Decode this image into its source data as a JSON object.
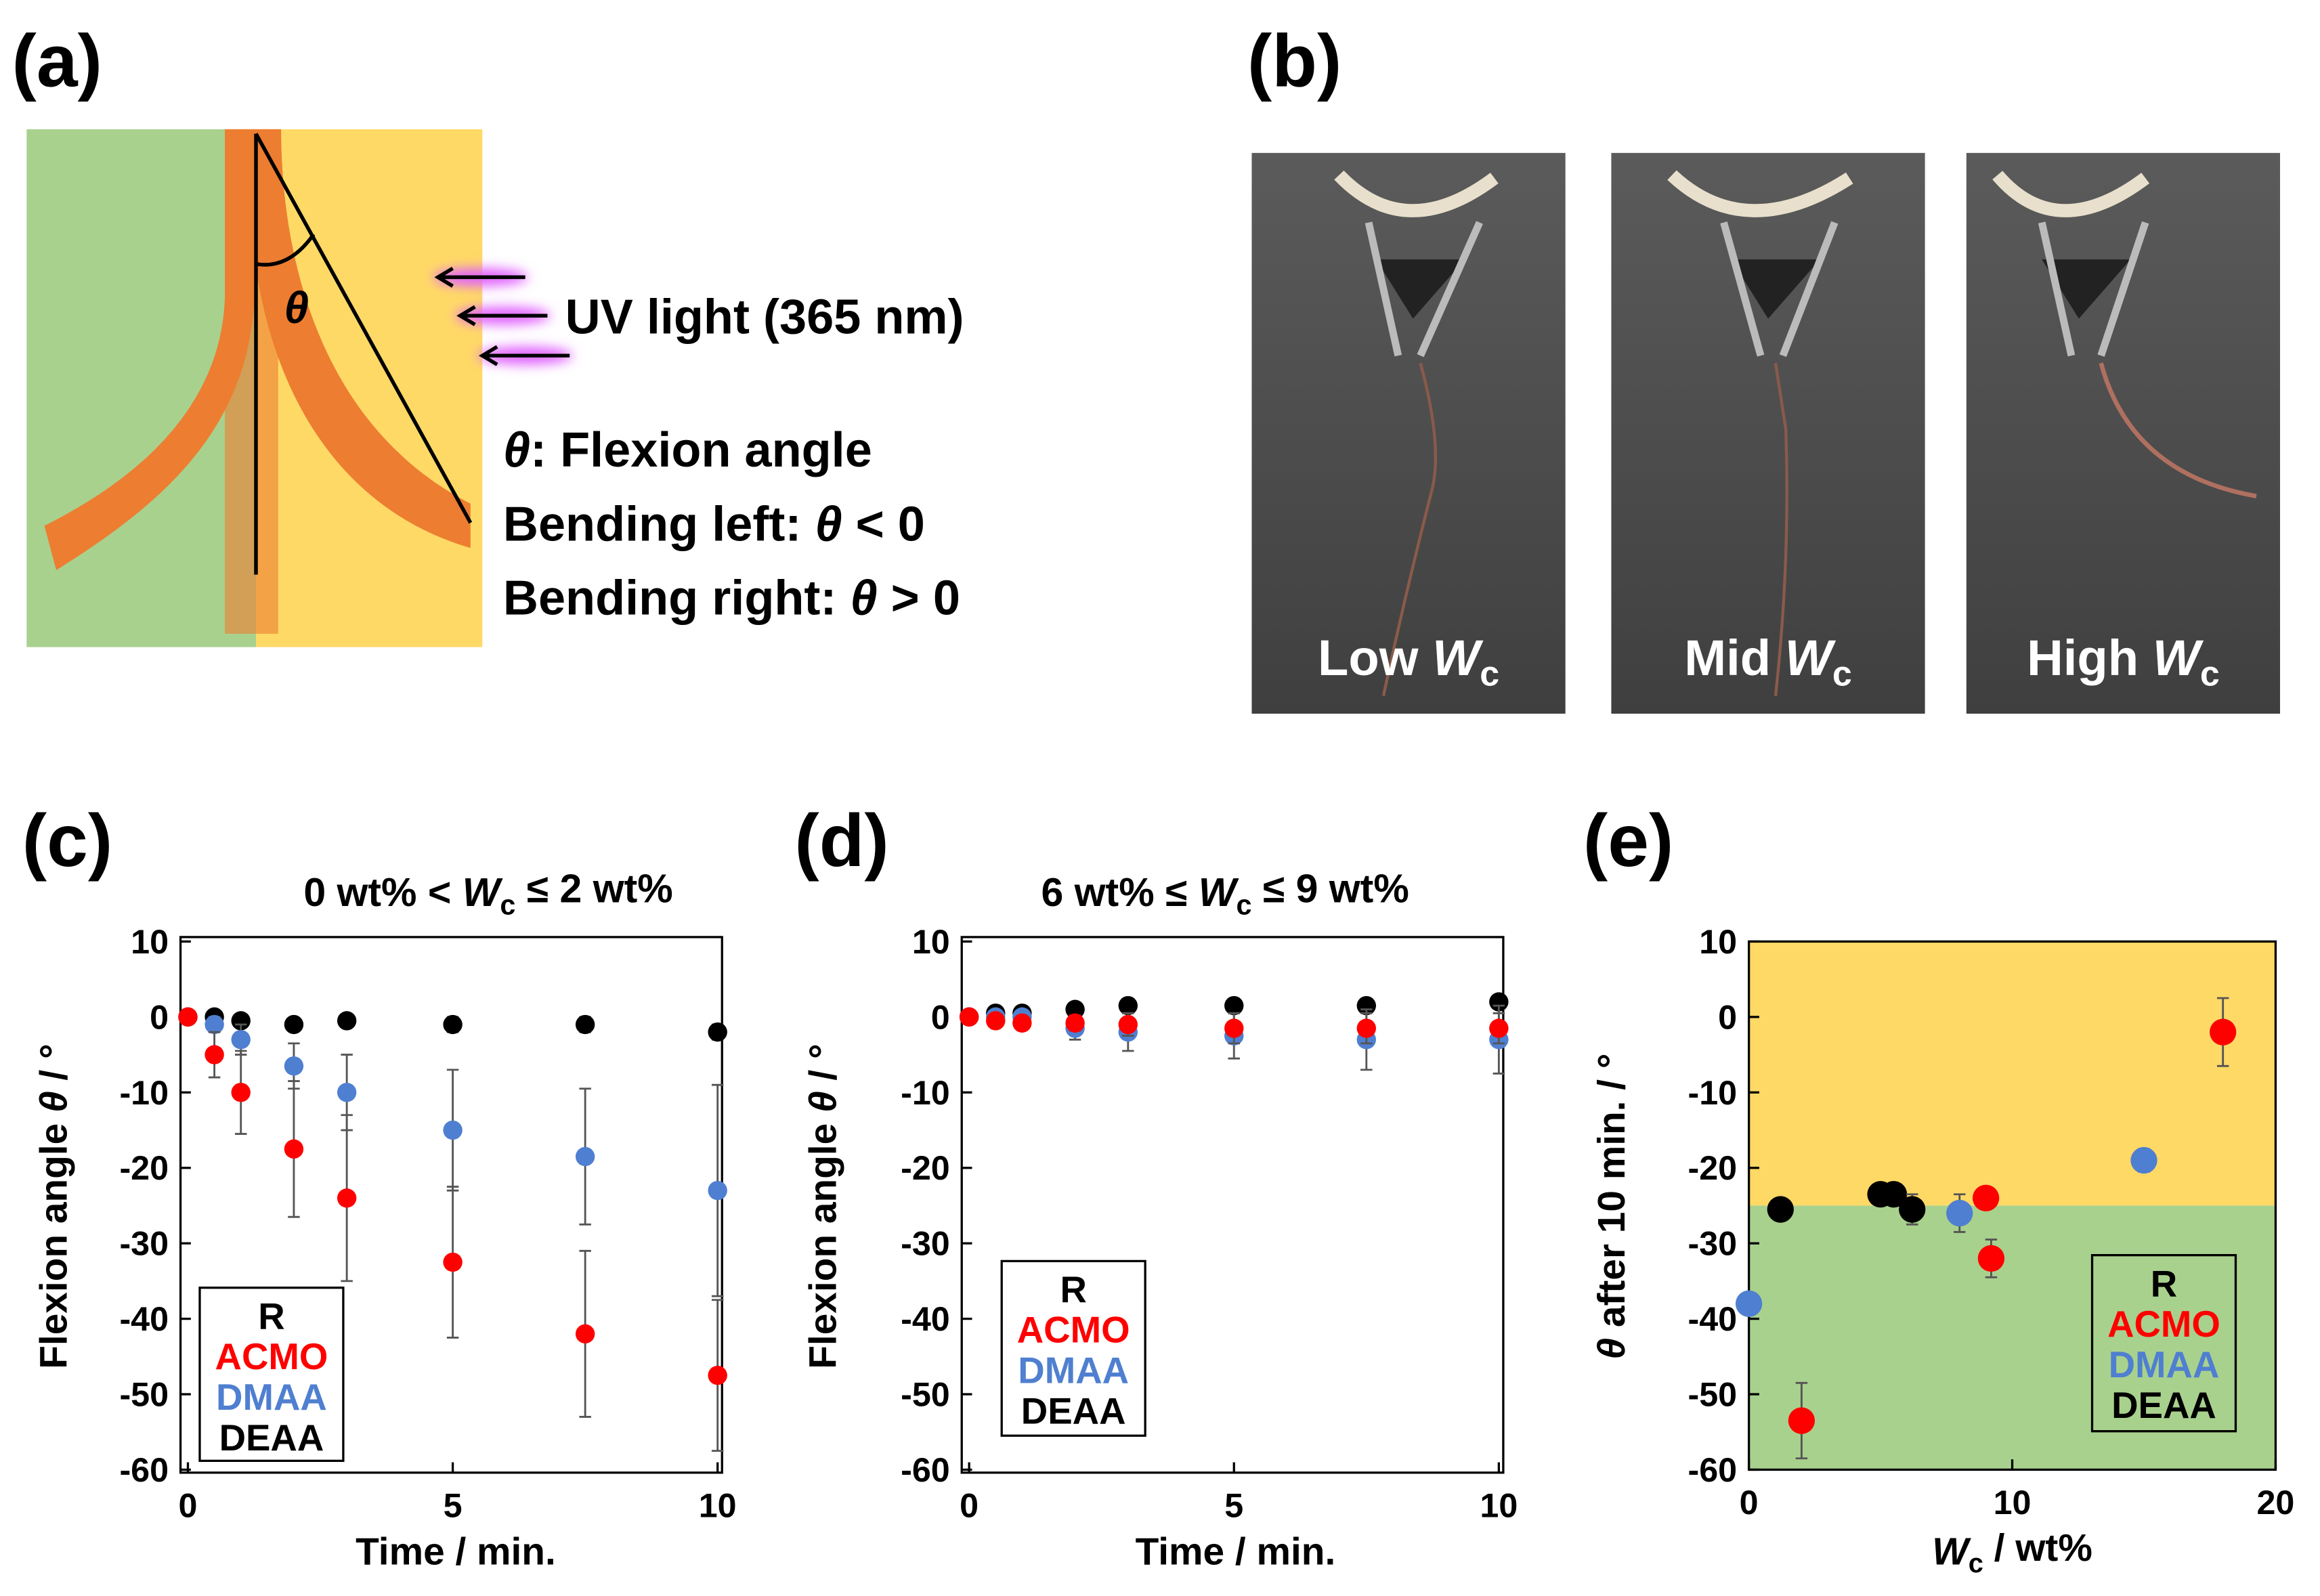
{
  "panels": {
    "a": {
      "label": "(a)",
      "theta": [
        {
          "t": "θ",
          "i": true
        }
      ],
      "uv": [
        {
          "t": "UV light (365 nm)"
        }
      ],
      "lines": [
        [
          {
            "t": "θ",
            "i": true
          },
          {
            "t": ": Flexion angle"
          }
        ],
        [
          {
            "t": "Bending left: "
          },
          {
            "t": "θ",
            "i": true
          },
          {
            "t": " < 0"
          }
        ],
        [
          {
            "t": "Bending right: "
          },
          {
            "t": "θ",
            "i": true
          },
          {
            "t": " > 0"
          }
        ]
      ]
    },
    "b": {
      "label": "(b)",
      "photos": [
        [
          {
            "t": "Low "
          },
          {
            "t": "W",
            "i": true
          },
          {
            "t": "c",
            "sub": true
          }
        ],
        [
          {
            "t": "Mid "
          },
          {
            "t": "W",
            "i": true
          },
          {
            "t": "c",
            "sub": true
          }
        ],
        [
          {
            "t": "High "
          },
          {
            "t": "W",
            "i": true
          },
          {
            "t": "c",
            "sub": true
          }
        ]
      ]
    }
  },
  "chart_data": [
    {
      "type": "scatter",
      "label": "(c)",
      "title": [
        {
          "t": "0 wt% < "
        },
        {
          "t": "W",
          "i": true
        },
        {
          "t": "c",
          "sub": true
        },
        {
          "t": " ≤ 2 wt%"
        }
      ],
      "xlabel": [
        {
          "t": "Time / min."
        }
      ],
      "ylabel": [
        {
          "t": "Flexion angle "
        },
        {
          "t": "θ",
          "i": true
        },
        {
          "t": " / °"
        }
      ],
      "xlim": [
        0,
        10
      ],
      "xticks": [
        0,
        5,
        10
      ],
      "ylim": [
        -60,
        10
      ],
      "yticks": [
        -60,
        -50,
        -40,
        -30,
        -20,
        -10,
        0,
        10
      ],
      "legend_title": "R",
      "x": [
        0,
        0.5,
        1,
        2,
        3,
        5,
        7.5,
        10
      ],
      "series": [
        {
          "name": "ACMO",
          "color": "#ff0000",
          "values": [
            0,
            -5,
            -10,
            -17.5,
            -24,
            -32.5,
            -42,
            -47.5
          ],
          "errors": [
            0,
            3,
            5.5,
            9,
            11,
            10,
            11,
            10
          ]
        },
        {
          "name": "DMAA",
          "color": "#4f7fd0",
          "values": [
            0,
            -1,
            -3,
            -6.5,
            -10,
            -15,
            -18.5,
            -23
          ],
          "errors": [
            0,
            1,
            2,
            3,
            5,
            8,
            9,
            14
          ]
        },
        {
          "name": "DEAA",
          "color": "#000000",
          "values": [
            0,
            0,
            -0.5,
            -1,
            -0.5,
            -1,
            -1,
            -2
          ],
          "errors": [
            0,
            0.5,
            0.5,
            0.5,
            0.5,
            1,
            1,
            1
          ]
        }
      ]
    },
    {
      "type": "scatter",
      "label": "(d)",
      "title": [
        {
          "t": "6 wt% ≤ "
        },
        {
          "t": "W",
          "i": true
        },
        {
          "t": "c",
          "sub": true
        },
        {
          "t": " ≤ 9 wt%"
        }
      ],
      "xlabel": [
        {
          "t": "Time / min."
        }
      ],
      "ylabel": [
        {
          "t": "Flexion angle "
        },
        {
          "t": "θ",
          "i": true
        },
        {
          "t": " / °"
        }
      ],
      "xlim": [
        0,
        10
      ],
      "xticks": [
        0,
        5,
        10
      ],
      "ylim": [
        -60,
        10
      ],
      "yticks": [
        -60,
        -50,
        -40,
        -30,
        -20,
        -10,
        0,
        10
      ],
      "legend_title": "R",
      "x": [
        0,
        0.5,
        1,
        2,
        3,
        5,
        7.5,
        10
      ],
      "series": [
        {
          "name": "ACMO",
          "color": "#ff0000",
          "values": [
            0,
            -0.5,
            -0.8,
            -0.8,
            -1,
            -1.5,
            -1.5,
            -1.5
          ],
          "errors": [
            0,
            0.5,
            0.5,
            1,
            1.5,
            2,
            2,
            2
          ]
        },
        {
          "name": "DMAA",
          "color": "#4f7fd0",
          "values": [
            0,
            0,
            0,
            -1.5,
            -2,
            -2.5,
            -3,
            -3
          ],
          "errors": [
            0,
            0.5,
            0.5,
            1.5,
            2.5,
            3,
            4,
            4.5
          ]
        },
        {
          "name": "DEAA",
          "color": "#000000",
          "values": [
            0,
            0.5,
            0.5,
            1,
            1.5,
            1.5,
            1.5,
            2
          ],
          "errors": [
            0,
            0.5,
            0.5,
            0.5,
            0.5,
            0.5,
            0.5,
            0.5
          ]
        }
      ]
    },
    {
      "type": "scatter",
      "label": "(e)",
      "xlabel": [
        {
          "t": "W",
          "i": true
        },
        {
          "t": "c",
          "sub": true
        },
        {
          "t": " / wt%"
        }
      ],
      "ylabel": [
        {
          "t": "θ",
          "i": true
        },
        {
          "t": " after 10 min. / °"
        }
      ],
      "xlim": [
        0,
        20
      ],
      "xticks": [
        0,
        10,
        20
      ],
      "ylim": [
        -60,
        10
      ],
      "yticks": [
        -60,
        -50,
        -40,
        -30,
        -20,
        -10,
        0,
        10
      ],
      "legend_title": "R",
      "regions": [
        {
          "from": -25,
          "to": 10,
          "color": "#ffd966"
        },
        {
          "from": -60,
          "to": -25,
          "color": "#a9d18e"
        }
      ],
      "series": [
        {
          "name": "ACMO",
          "color": "#ff0000",
          "x": [
            2,
            9,
            9.2,
            18
          ],
          "values": [
            -53.5,
            -24,
            -32,
            -2
          ],
          "errors": [
            5,
            1,
            2.5,
            4.5
          ]
        },
        {
          "name": "DMAA",
          "color": "#4f7fd0",
          "x": [
            0,
            8,
            15
          ],
          "values": [
            -38,
            -26,
            -19
          ],
          "errors": [
            1,
            2.5,
            1.5
          ]
        },
        {
          "name": "DEAA",
          "color": "#000000",
          "x": [
            1.2,
            5,
            5.5,
            6.2
          ],
          "values": [
            -25.5,
            -23.5,
            -23.5,
            -25.5
          ],
          "errors": [
            1,
            1,
            1,
            2
          ]
        }
      ]
    }
  ]
}
